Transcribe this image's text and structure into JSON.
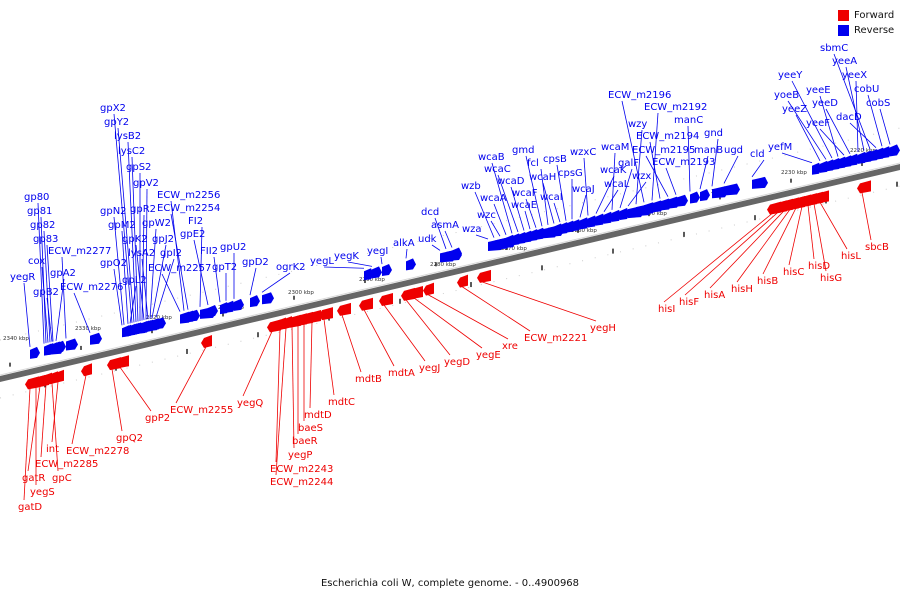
{
  "legend": [
    {
      "label": "Forward",
      "color": "#ee0000"
    },
    {
      "label": "Reverse",
      "color": "#0000ee"
    }
  ],
  "caption": "Escherichia coli W, complete genome. - 0..4900968",
  "colors": {
    "forward": "#ee0000",
    "reverse": "#0000ee",
    "axis": "#888888"
  },
  "ticks": [
    "2340 kbp",
    "2330 kbp",
    "2320 kbp",
    "2310 kbp",
    "2300 kbp",
    "2290 kbp",
    "2280 kbp",
    "2270 kbp",
    "2260 kbp",
    "2250 kbp",
    "2240 kbp",
    "2230 kbp",
    "2220 kbp"
  ],
  "reverse_genes": [
    "yegR",
    "cox",
    "gpB2",
    "gpA2",
    "gp80",
    "gp81",
    "gp82",
    "gp83",
    "ECW_m2277",
    "ECW_m2276",
    "gpO2",
    "gpN2",
    "gpM2",
    "gpL2",
    "gpX2",
    "gpY2",
    "lysB2",
    "lysC2",
    "gpS2",
    "gpR2",
    "gpK2",
    "gpV2",
    "lysA2",
    "gpW2",
    "gpJ2",
    "gpI2",
    "ECW_m2257",
    "ECW_m2256",
    "ECW_m2254",
    "FI2",
    "gpE2",
    "FII2",
    "gpT2",
    "gpU2",
    "gpD2",
    "ogrK2",
    "yegL",
    "yegK",
    "yegI",
    "alkA",
    "udk",
    "dcd",
    "asmA",
    "wza",
    "wzb",
    "wzc",
    "wcaA",
    "wcaB",
    "wcaC",
    "wcaD",
    "wcaE",
    "wcaF",
    "gmd",
    "fcl",
    "wcaH",
    "wcaI",
    "cpsB",
    "cpsG",
    "wcaJ",
    "wzxC",
    "wcaK",
    "wcaL",
    "wcaM",
    "galF",
    "wzx",
    "wzy",
    "ECW_m2196",
    "ECW_m2192",
    "ECW_m2194",
    "ECW_m2195",
    "ECW_m2193",
    "manC",
    "manB",
    "gnd",
    "ugd",
    "cld",
    "yefM",
    "yeeZ",
    "yoeB",
    "yeeY",
    "yeeE",
    "yeeF",
    "yeeD",
    "yeeX",
    "yeeA",
    "sbmC",
    "dacD",
    "cobU",
    "cobS"
  ],
  "forward_genes": [
    "gatD",
    "yegS",
    "gatR",
    "ECW_m2285",
    "gpC",
    "int",
    "ECW_m2278",
    "gpQ2",
    "gpP2",
    "ECW_m2255",
    "yegQ",
    "ECW_m2243",
    "ECW_m2244",
    "yegP",
    "baeR",
    "baeS",
    "mdtD",
    "mdtC",
    "mdtB",
    "mdtA",
    "yegJ",
    "yegD",
    "yegE",
    "xre",
    "ECW_m2221",
    "yegH",
    "hisI",
    "hisF",
    "hisA",
    "hisH",
    "hisB",
    "hisC",
    "hisD",
    "hisG",
    "hisL",
    "sbcB"
  ]
}
